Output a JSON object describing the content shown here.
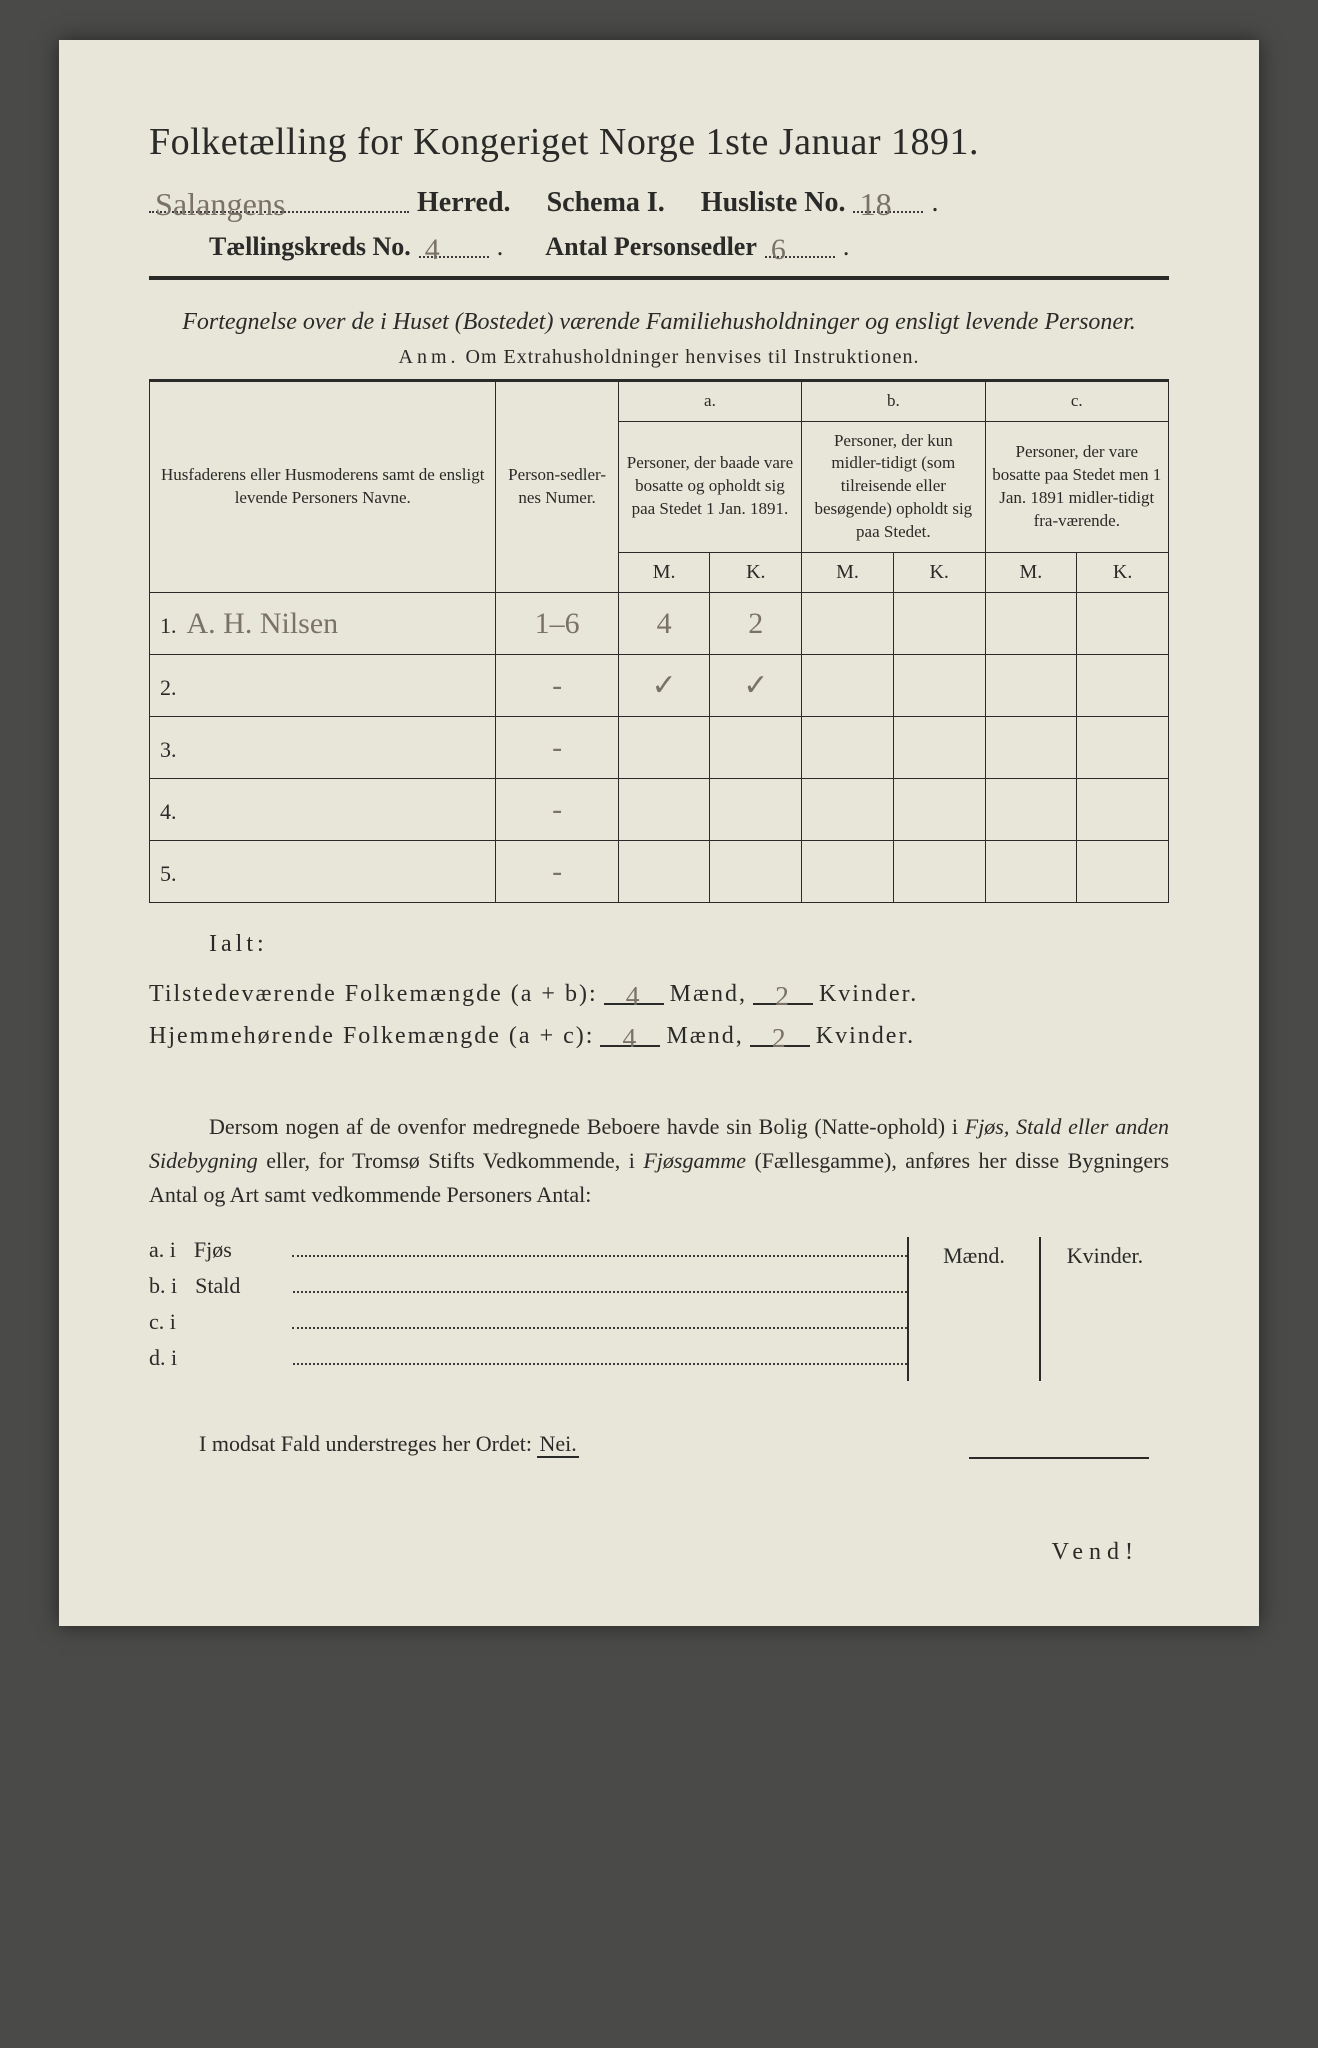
{
  "header": {
    "title": "Folketælling for Kongeriget Norge 1ste Januar 1891.",
    "herred_value": "Salangens",
    "herred_label": "Herred.",
    "schema_label": "Schema I.",
    "husliste_label": "Husliste No.",
    "husliste_value": "18",
    "kreds_label": "Tællingskreds No.",
    "kreds_value": "4",
    "antal_label": "Antal Personsedler",
    "antal_value": "6"
  },
  "fortegnelse": {
    "line": "Fortegnelse over de i Huset (Bostedet) værende Familiehusholdninger og ensligt levende Personer.",
    "anm_lead": "Anm.",
    "anm_rest": "Om Extrahusholdninger henvises til Instruktionen."
  },
  "table": {
    "col_name": "Husfaderens eller Husmoderens samt de ensligt levende Personers Navne.",
    "col_numer": "Person-sedler-nes Numer.",
    "col_a_top": "a.",
    "col_a": "Personer, der baade vare bosatte og opholdt sig paa Stedet 1 Jan. 1891.",
    "col_b_top": "b.",
    "col_b": "Personer, der kun midler-tidigt (som tilreisende eller besøgende) opholdt sig paa Stedet.",
    "col_c_top": "c.",
    "col_c": "Personer, der vare bosatte paa Stedet men 1 Jan. 1891 midler-tidigt fra-værende.",
    "mk_m": "M.",
    "mk_k": "K.",
    "rows": [
      {
        "num": "1.",
        "name": "A. H. Nilsen",
        "numer": "1–6",
        "a_m": "4",
        "a_k": "2",
        "b_m": "",
        "b_k": "",
        "c_m": "",
        "c_k": ""
      },
      {
        "num": "2.",
        "name": "",
        "numer": "-",
        "a_m": "✓",
        "a_k": "✓",
        "b_m": "",
        "b_k": "",
        "c_m": "",
        "c_k": ""
      },
      {
        "num": "3.",
        "name": "",
        "numer": "-",
        "a_m": "",
        "a_k": "",
        "b_m": "",
        "b_k": "",
        "c_m": "",
        "c_k": ""
      },
      {
        "num": "4.",
        "name": "",
        "numer": "-",
        "a_m": "",
        "a_k": "",
        "b_m": "",
        "b_k": "",
        "c_m": "",
        "c_k": ""
      },
      {
        "num": "5.",
        "name": "",
        "numer": "-",
        "a_m": "",
        "a_k": "",
        "b_m": "",
        "b_k": "",
        "c_m": "",
        "c_k": ""
      }
    ]
  },
  "sums": {
    "ialt": "Ialt:",
    "tilstede_label": "Tilstedeværende Folkemængde (a + b):",
    "hjem_label": "Hjemmehørende Folkemængde (a + c):",
    "maend": "Mænd,",
    "kvinder": "Kvinder.",
    "tilstede_m": "4",
    "tilstede_k": "2",
    "hjem_m": "4",
    "hjem_k": "2"
  },
  "dersom": {
    "text1": "Dersom nogen af de ovenfor medregnede Beboere havde sin Bolig (Natte-ophold) i ",
    "em1": "Fjøs, Stald eller anden Sidebygning",
    "text2": " eller, for Tromsø Stifts Vedkommende, i ",
    "em2": "Fjøsgamme",
    "text3": " (Fællesgamme), anføres her disse Bygningers Antal og Art samt vedkommende Personers Antal:"
  },
  "bygn": {
    "head_m": "Mænd.",
    "head_k": "Kvinder.",
    "rows": [
      {
        "lbl": "a.  i",
        "type": "Fjøs"
      },
      {
        "lbl": "b.  i",
        "type": "Stald"
      },
      {
        "lbl": "c.  i",
        "type": ""
      },
      {
        "lbl": "d.  i",
        "type": ""
      }
    ]
  },
  "modsat": {
    "text": "I modsat Fald understreges her Ordet: ",
    "nei": "Nei."
  },
  "vend": "Vend!",
  "colors": {
    "paper": "#e8e6d8",
    "ink": "#2a2a28",
    "handwriting": "#7a7268",
    "background": "#4a4a48"
  }
}
